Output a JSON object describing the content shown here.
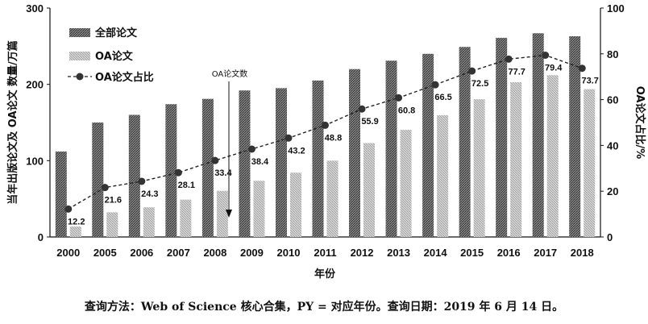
{
  "chart_data": {
    "type": "bar",
    "categories": [
      "2000",
      "2005",
      "2006",
      "2007",
      "2008",
      "2009",
      "2010",
      "2011",
      "2012",
      "2013",
      "2014",
      "2015",
      "2016",
      "2017",
      "2018"
    ],
    "series": [
      {
        "name": "全部论文",
        "values": [
          112,
          150,
          160,
          174,
          181,
          192,
          195,
          205,
          220,
          231,
          240,
          249,
          261,
          267,
          263
        ]
      },
      {
        "name": "OA论文",
        "values": [
          13.7,
          32.4,
          38.9,
          48.9,
          60.5,
          73.7,
          84.2,
          100,
          123,
          140.4,
          159.6,
          180.5,
          202.8,
          212,
          193.8
        ]
      }
    ],
    "ratio_series": {
      "name": "OA论文占比",
      "values": [
        12.2,
        21.6,
        24.3,
        28.1,
        33.4,
        38.4,
        43.2,
        48.8,
        55.9,
        60.8,
        66.5,
        72.5,
        77.7,
        79.4,
        73.7
      ]
    },
    "data_labels": [
      "12.2",
      "21.6",
      "24.3",
      "28.1",
      "33.4",
      "38.4",
      "43.2",
      "48.8",
      "55.9",
      "60.8",
      "66.5",
      "72.5",
      "77.7",
      "79.4",
      "73.7"
    ],
    "xlabel": "年份",
    "ylabel_left": "当年出版论文及 OA论文 数量/万篇",
    "ylabel_right": "OA论文占比/%",
    "ylim_left": [
      0,
      300
    ],
    "ylim_right": [
      0,
      100
    ],
    "yticks_left": [
      "0",
      "100",
      "200",
      "300"
    ],
    "yticks_right": [
      "0",
      "20",
      "40",
      "60",
      "80",
      "100"
    ],
    "annotation": "OA论文数",
    "legend_position": "top-left",
    "grid": false
  },
  "caption": "查询方法：Web of Science 核心合集，PY = 对应年份。查询日期：2019 年 6 月 14 日。",
  "colors": {
    "all_bar": "#6f6f6f",
    "oa_bar": "#bdbdbd",
    "line": "#222222"
  }
}
